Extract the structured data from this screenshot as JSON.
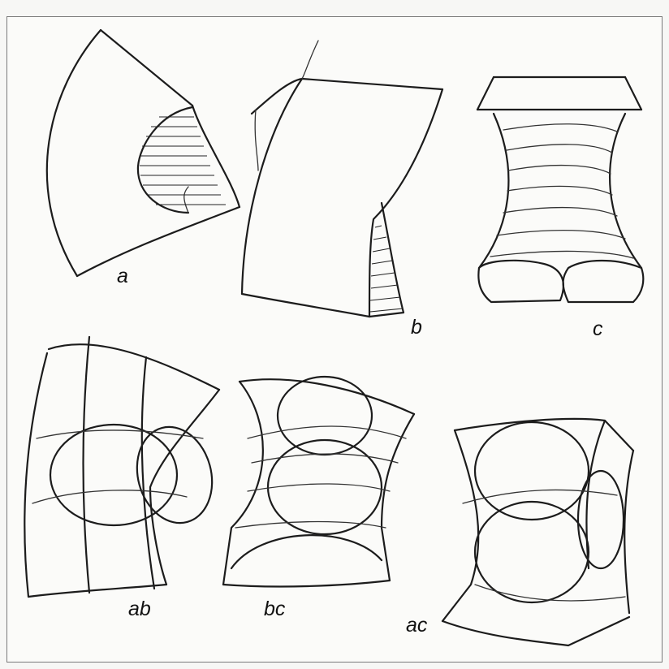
{
  "figure": {
    "panels": [
      {
        "id": "a",
        "label": "a"
      },
      {
        "id": "b",
        "label": "b"
      },
      {
        "id": "c",
        "label": "c"
      },
      {
        "id": "ab",
        "label": "ab"
      },
      {
        "id": "bc",
        "label": "bc"
      },
      {
        "id": "ac",
        "label": "ac"
      }
    ]
  },
  "colors": {
    "ink": "#1c1c1c",
    "paper": "#fbfbf9",
    "border": "#7a7a7a"
  }
}
